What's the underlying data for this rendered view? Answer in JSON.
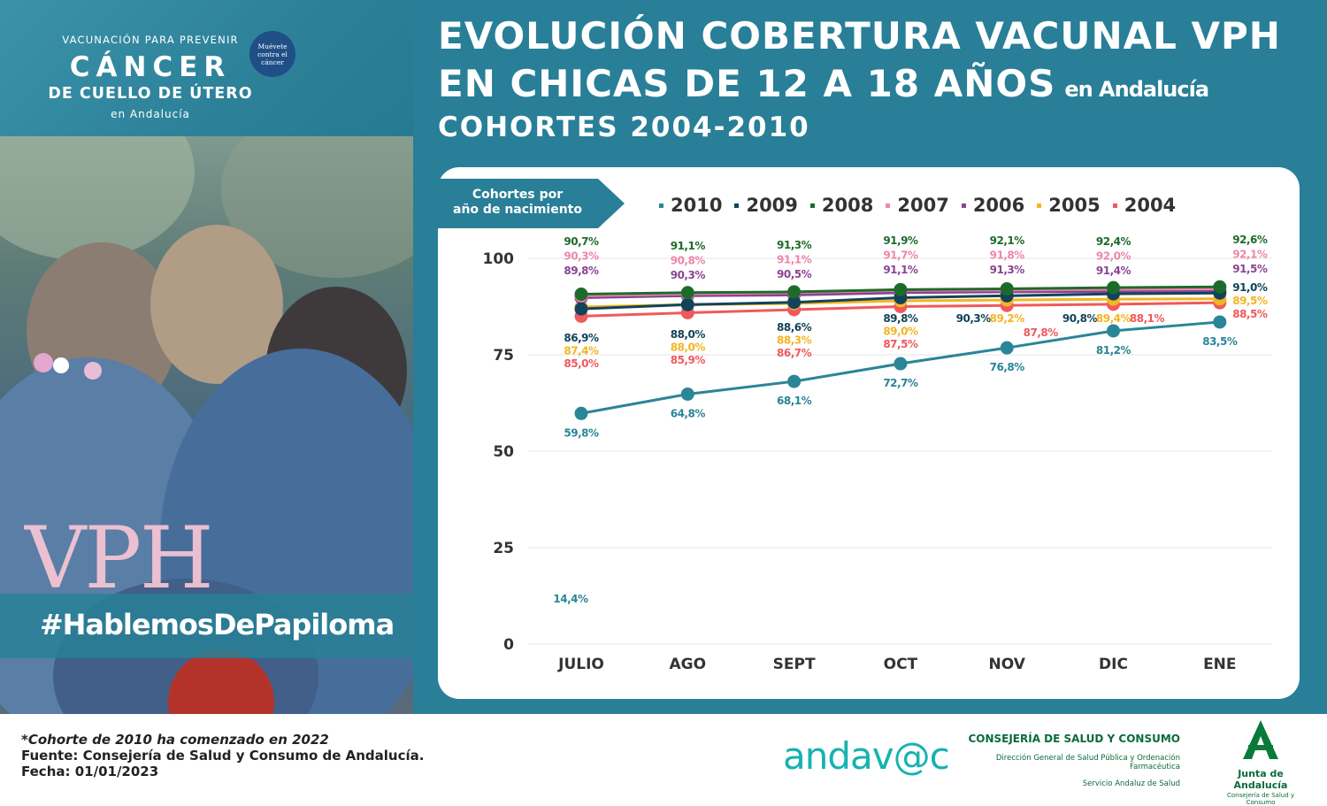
{
  "logo": {
    "top_text": "VACUNACIÓN PARA PREVENIR",
    "main_text": "CÁNCER",
    "sub_text": "DE CUELLO DE ÚTERO",
    "region_text": "en Andalucía",
    "badge_lines": [
      "Muévete",
      "contra el",
      "cáncer"
    ]
  },
  "side": {
    "vph": "VPH",
    "hashtag": "#HablemosDePapiloma"
  },
  "title": {
    "line1": "EVOLUCIÓN COBERTURA VACUNAL VPH",
    "line2": "EN CHICAS DE 12 A 18 AÑOS",
    "line2_sub": "en Andalucía",
    "line3": "COHORTES  2004-2010"
  },
  "cohort_label": [
    "Cohortes por",
    "año de nacimiento"
  ],
  "chart_data": {
    "type": "line",
    "categories": [
      "JULIO",
      "AGO",
      "SEPT",
      "OCT",
      "NOV",
      "DIC",
      "ENE"
    ],
    "ylim": [
      0,
      100
    ],
    "yticks": [
      0,
      25,
      50,
      75,
      100
    ],
    "grid": true,
    "legend_position": "top",
    "series": [
      {
        "name": "2010",
        "color": "#2a8597",
        "values": [
          59.8,
          64.8,
          68.1,
          72.7,
          76.8,
          81.2,
          83.5
        ],
        "labels": [
          "59,8%",
          "64,8%",
          "68,1%",
          "72,7%",
          "76,8%",
          "81,2%",
          "83,5%"
        ]
      },
      {
        "name": "2009",
        "color": "#12435a",
        "values": [
          86.9,
          88.0,
          88.6,
          89.8,
          90.3,
          90.8,
          91.0
        ],
        "labels": [
          "86,9%",
          "88,0%",
          "88,6%",
          "89,8%",
          "90,3%",
          "90,8%",
          "91,0%"
        ]
      },
      {
        "name": "2008",
        "color": "#1d6b2a",
        "values": [
          90.7,
          91.1,
          91.3,
          91.9,
          92.1,
          92.4,
          92.6
        ],
        "labels": [
          "90,7%",
          "91,1%",
          "91,3%",
          "91,9%",
          "92,1%",
          "92,4%",
          "92,6%"
        ]
      },
      {
        "name": "2007",
        "color": "#ef86ab",
        "values": [
          90.3,
          90.8,
          91.1,
          91.7,
          91.8,
          92.0,
          92.1
        ],
        "labels": [
          "90,3%",
          "90,8%",
          "91,1%",
          "91,7%",
          "91,8%",
          "92,0%",
          "92,1%"
        ]
      },
      {
        "name": "2006",
        "color": "#8a4393",
        "values": [
          89.8,
          90.3,
          90.5,
          91.1,
          91.3,
          91.4,
          91.5
        ],
        "labels": [
          "89,8%",
          "90,3%",
          "90,5%",
          "91,1%",
          "91,3%",
          "91,4%",
          "91,5%"
        ]
      },
      {
        "name": "2005",
        "color": "#f3b521",
        "values": [
          87.4,
          88.0,
          88.3,
          89.0,
          89.2,
          89.4,
          89.5
        ],
        "labels": [
          "87,4%",
          "88,0%",
          "88,3%",
          "89,0%",
          "89,2%",
          "89,4%",
          "89,5%"
        ]
      },
      {
        "name": "2004",
        "color": "#f0595b",
        "values": [
          85.0,
          85.9,
          86.7,
          87.5,
          87.8,
          88.1,
          88.5
        ],
        "labels": [
          "85,0%",
          "85,9%",
          "86,7%",
          "87,5%",
          "87,8%",
          "88,1%",
          "88,5%"
        ]
      }
    ],
    "annotations": [
      {
        "text": "14,4%",
        "color": "#2a8597",
        "category": "JULIO",
        "value": 14.4
      }
    ]
  },
  "footer": {
    "note": "*Cohorte de 2010 ha comenzado en 2022",
    "source": "Fuente: Consejería de Salud y Consumo de Andalucía.",
    "date": "Fecha: 01/01/2023",
    "andavac": "andav@c",
    "consejeria_title": "CONSEJERÍA DE SALUD Y CONSUMO",
    "consejeria_sub1": "Dirección General de Salud Pública y Ordenación Farmacéutica",
    "consejeria_sub2": "Servicio Andaluz de Salud",
    "junta_title": "Junta de Andalucía",
    "junta_sub": "Consejería de Salud y Consumo"
  }
}
